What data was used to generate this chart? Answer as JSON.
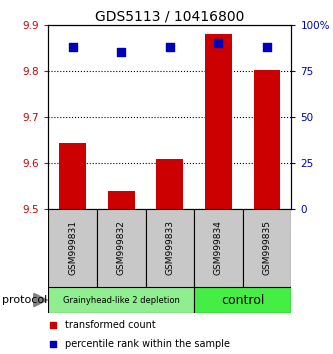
{
  "title": "GDS5113 / 10416800",
  "samples": [
    "GSM999831",
    "GSM999832",
    "GSM999833",
    "GSM999834",
    "GSM999835"
  ],
  "red_values": [
    9.643,
    9.538,
    9.608,
    9.88,
    9.802
  ],
  "blue_values": [
    88,
    85,
    88,
    90,
    88
  ],
  "ylim_left": [
    9.5,
    9.9
  ],
  "ylim_right": [
    0,
    100
  ],
  "yticks_left": [
    9.5,
    9.6,
    9.7,
    9.8,
    9.9
  ],
  "yticks_right": [
    0,
    25,
    50,
    75,
    100
  ],
  "ytick_labels_right": [
    "0",
    "25",
    "50",
    "75",
    "100%"
  ],
  "groups": [
    {
      "label": "Grainyhead-like 2 depletion",
      "color": "#90EE90",
      "text_size": 6,
      "count": 3
    },
    {
      "label": "control",
      "color": "#44EE44",
      "text_size": 9,
      "count": 2
    }
  ],
  "bar_color": "#CC0000",
  "dot_color": "#0000BB",
  "bar_width": 0.55,
  "dot_size": 35,
  "grid_color": "#000000",
  "left_tick_color": "#CC0000",
  "right_tick_color": "#0000BB",
  "sample_box_color": "#C8C8C8",
  "protocol_label": "protocol",
  "legend_red_label": "transformed count",
  "legend_blue_label": "percentile rank within the sample",
  "title_fontsize": 10
}
